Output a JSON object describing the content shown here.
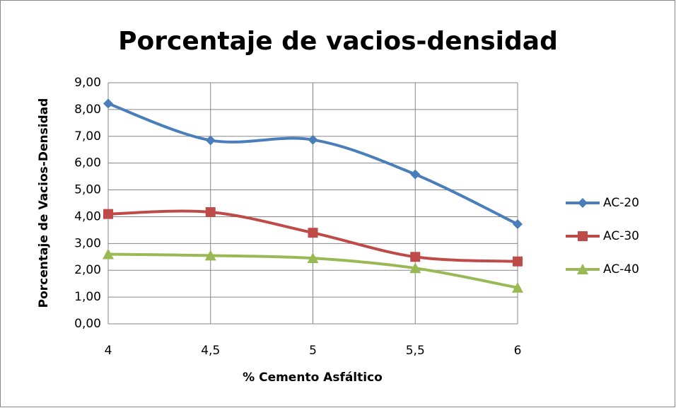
{
  "chart_data": {
    "type": "line",
    "title": "Porcentaje  de vacios-densidad",
    "x_label": "% Cemento Asfáltico",
    "y_label": "Porcentaje de Vacios-Densidad",
    "x": [
      4,
      4.5,
      5,
      5.5,
      6
    ],
    "series": [
      {
        "name": "AC-20",
        "color": "#4a7ebb",
        "marker": "diamond",
        "values": [
          8.22,
          6.85,
          6.87,
          5.58,
          3.72
        ]
      },
      {
        "name": "AC-30",
        "color": "#be4b48",
        "marker": "square",
        "values": [
          4.1,
          4.17,
          3.4,
          2.5,
          2.33
        ]
      },
      {
        "name": "AC-40",
        "color": "#98b954",
        "marker": "triangle",
        "values": [
          2.6,
          2.55,
          2.45,
          2.08,
          1.35
        ]
      }
    ],
    "xlim": [
      4,
      6
    ],
    "xticks": [
      4,
      {
        "value": 4.5,
        "label": "4,5"
      },
      5,
      {
        "value": 5.5,
        "label": "5,5"
      },
      6
    ],
    "ylim": [
      0,
      9
    ],
    "yticks": [
      {
        "value": 0,
        "label": "0,00"
      },
      {
        "value": 1,
        "label": "1,00"
      },
      {
        "value": 2,
        "label": "2,00"
      },
      {
        "value": 3,
        "label": "3,00"
      },
      {
        "value": 4,
        "label": "4,00"
      },
      {
        "value": 5,
        "label": "5,00"
      },
      {
        "value": 6,
        "label": "6,00"
      },
      {
        "value": 7,
        "label": "7,00"
      },
      {
        "value": 8,
        "label": "8,00"
      },
      {
        "value": 9,
        "label": "9,00"
      }
    ],
    "grid": true,
    "smooth": true,
    "legend": "right"
  }
}
